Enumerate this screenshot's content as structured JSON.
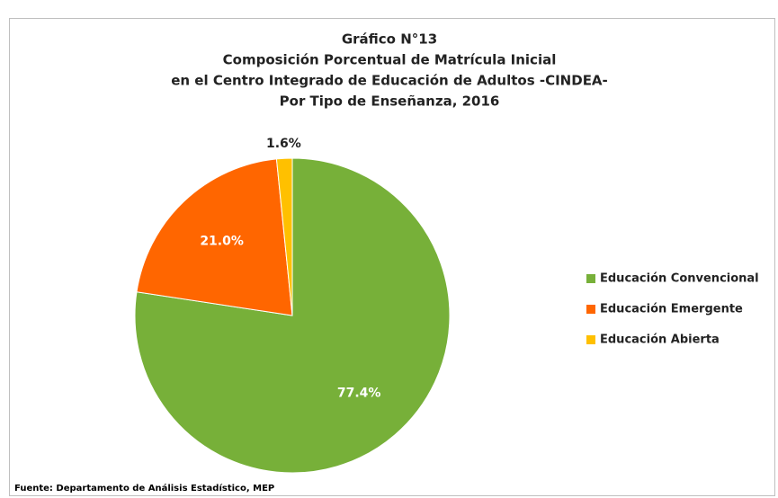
{
  "chart_data": {
    "type": "pie",
    "title": [
      "Gráfico N°13",
      "Composición Porcentual de Matrícula Inicial",
      "en el Centro Integrado de Educación de Adultos -CINDEA-",
      "Por Tipo de Enseñanza, 2016"
    ],
    "categories": [
      "Educación Convencional",
      "Educación Emergente",
      "Educación Abierta"
    ],
    "values": [
      77.4,
      21.0,
      1.6
    ],
    "value_labels": [
      "77.4%",
      "21.0%",
      "1.6%"
    ],
    "colors": [
      "#77b039",
      "#ff6600",
      "#ffc000"
    ],
    "legend": "right",
    "source": "Fuente: Departamento de Análisis Estadístico, MEP"
  }
}
